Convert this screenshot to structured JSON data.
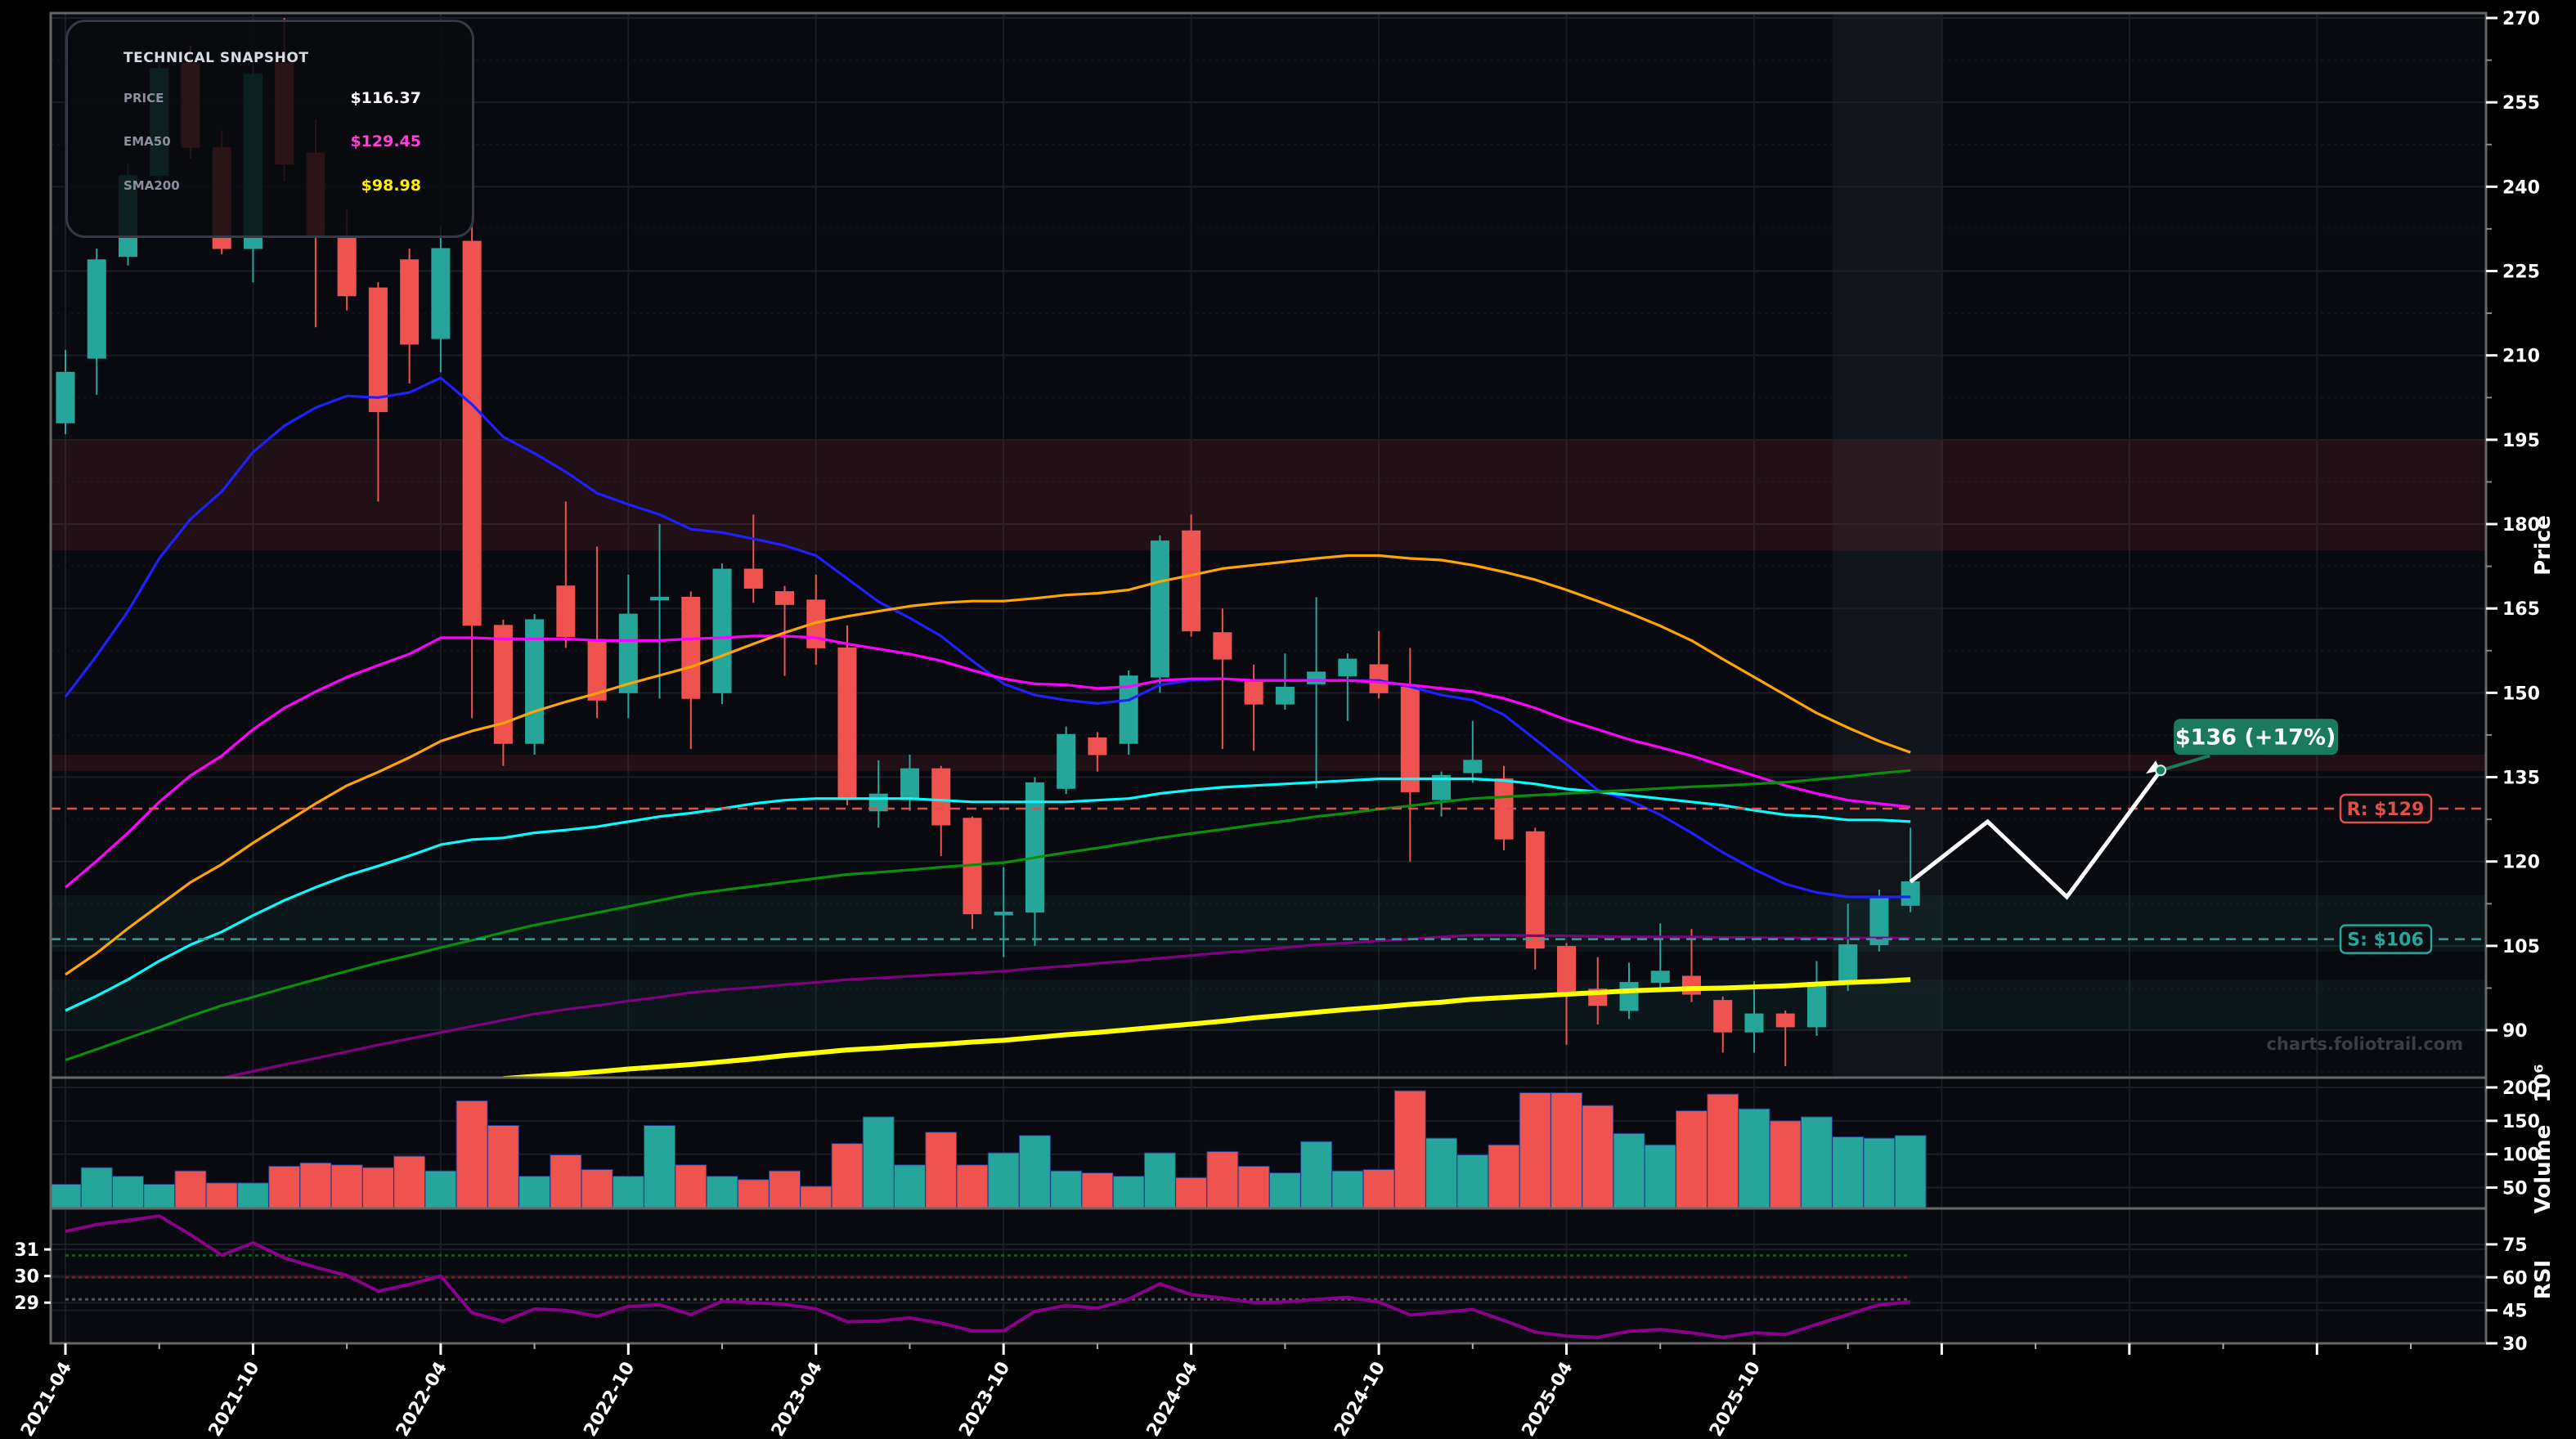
{
  "snapshot": {
    "title": "TECHNICAL SNAPSHOT",
    "rows": [
      {
        "label": "PRICE",
        "value": "$116.37",
        "color": "#ffffff"
      },
      {
        "label": "EMA50",
        "value": "$129.45",
        "color": "#ff40d8"
      },
      {
        "label": "SMA200",
        "value": "$98.98",
        "color": "#ffee00"
      }
    ]
  },
  "watermark": "charts.foliotrail.com",
  "chart_data": [
    {
      "type": "candlestick",
      "ylabel": "Price",
      "ylim": [
        81.6,
        270.9
      ],
      "yticks": [
        90,
        105,
        120,
        135,
        150,
        165,
        180,
        195,
        210,
        225,
        240,
        255,
        270
      ],
      "xlim": [
        "2021-03",
        "2027-09"
      ],
      "xticklabels": [
        "2021-04",
        "2021-10",
        "2022-04",
        "2022-10",
        "2023-04",
        "2023-10",
        "2024-04",
        "2024-10",
        "2025-04",
        "2025-10"
      ],
      "grid": true,
      "colors": {
        "up": "#26a69a",
        "down": "#ef5350"
      },
      "candles_columns": [
        "month",
        "open",
        "high",
        "low",
        "close"
      ],
      "candles": [
        [
          "2021-04",
          198,
          211,
          196,
          207
        ],
        [
          "2021-05",
          209.5,
          229,
          203,
          227
        ],
        [
          "2021-06",
          227.6,
          244,
          226,
          242
        ],
        [
          "2021-07",
          242,
          263,
          240,
          261
        ],
        [
          "2021-08",
          262,
          265,
          245,
          247
        ],
        [
          "2021-09",
          247,
          250,
          228,
          229
        ],
        [
          "2021-10",
          229,
          262,
          223,
          260
        ],
        [
          "2021-11",
          262,
          270,
          241,
          244
        ],
        [
          "2021-12",
          246,
          252,
          215,
          231
        ],
        [
          "2022-01",
          231,
          236,
          218,
          220.6
        ],
        [
          "2022-02",
          222,
          223,
          184,
          200
        ],
        [
          "2022-03",
          227,
          229,
          205,
          212
        ],
        [
          "2022-04",
          213,
          233,
          207,
          229
        ],
        [
          "2022-05",
          230.3,
          235,
          145.5,
          162
        ],
        [
          "2022-06",
          162,
          163,
          137,
          141
        ],
        [
          "2022-07",
          141,
          164,
          139,
          163
        ],
        [
          "2022-08",
          169,
          184,
          158,
          160
        ],
        [
          "2022-09",
          159.5,
          176,
          145.5,
          148.7
        ],
        [
          "2022-10",
          150,
          171,
          145.5,
          164
        ],
        [
          "2022-11",
          166.5,
          180,
          149,
          167
        ],
        [
          "2022-12",
          167,
          168,
          140,
          149
        ],
        [
          "2023-01",
          150,
          173,
          148,
          172
        ],
        [
          "2023-02",
          172,
          181.7,
          166,
          168.6
        ],
        [
          "2023-03",
          168,
          169,
          153,
          165.7
        ],
        [
          "2023-04",
          166.5,
          171,
          155,
          158
        ],
        [
          "2023-05",
          158,
          162,
          130,
          131
        ],
        [
          "2023-06",
          129,
          138,
          126,
          132
        ],
        [
          "2023-07",
          131,
          139,
          129,
          136.5
        ],
        [
          "2023-08",
          136.5,
          137,
          121,
          126.5
        ],
        [
          "2023-09",
          127.7,
          128,
          108,
          110.7
        ],
        [
          "2023-10",
          110.5,
          119,
          103,
          111
        ],
        [
          "2023-11",
          111,
          135,
          105,
          134
        ],
        [
          "2023-12",
          133,
          144,
          132,
          142.6
        ],
        [
          "2024-01",
          142,
          143,
          136,
          139
        ],
        [
          "2024-02",
          141,
          154,
          139,
          153
        ],
        [
          "2024-03",
          152.8,
          178,
          150,
          177
        ],
        [
          "2024-04",
          178.8,
          181.7,
          160,
          161
        ],
        [
          "2024-05",
          160.7,
          165,
          140,
          156
        ],
        [
          "2024-06",
          152,
          155,
          139.7,
          148
        ],
        [
          "2024-07",
          148,
          157,
          147,
          151
        ],
        [
          "2024-08",
          151.6,
          167,
          133,
          153.7
        ],
        [
          "2024-09",
          153,
          157,
          145,
          156
        ],
        [
          "2024-10",
          155,
          161,
          149,
          150
        ],
        [
          "2024-11",
          151,
          158,
          120,
          132.4
        ],
        [
          "2024-12",
          131,
          136,
          128,
          135.3
        ],
        [
          "2025-01",
          135.8,
          145,
          134,
          138
        ],
        [
          "2025-02",
          134.7,
          137,
          122,
          124
        ],
        [
          "2025-03",
          125.3,
          126,
          100.8,
          104.6
        ],
        [
          "2025-04",
          104.9,
          105.5,
          87.4,
          96.7
        ],
        [
          "2025-05",
          97.3,
          103,
          91,
          94.4
        ],
        [
          "2025-06",
          93.5,
          102,
          92,
          98.5
        ],
        [
          "2025-07",
          98.5,
          109,
          97,
          100.5
        ],
        [
          "2025-08",
          99.6,
          108,
          95,
          96.4
        ],
        [
          "2025-09",
          95.3,
          96,
          86,
          89.7
        ],
        [
          "2025-10",
          89.7,
          98.7,
          86,
          92.9
        ],
        [
          "2025-11",
          92.9,
          93.5,
          83.6,
          90.6
        ],
        [
          "2025-12",
          90.6,
          102.3,
          89,
          98.5
        ],
        [
          "2026-01",
          98.5,
          112.5,
          97,
          105.2
        ],
        [
          "2026-02",
          105.2,
          115,
          104,
          113.7
        ],
        [
          "2026-03",
          112.2,
          126,
          111,
          116.4
        ]
      ],
      "moving_averages": [
        {
          "color": "#2020ff",
          "values": [
            149.3,
            156.6,
            164.5,
            173.9,
            180.9,
            185.8,
            192.8,
            197.5,
            200.7,
            202.8,
            202.5,
            203.4,
            206.0,
            201.3,
            195.5,
            192.6,
            189.3,
            185.5,
            183.5,
            181.7,
            179.1,
            178.5,
            177.4,
            176.2,
            174.4,
            170.3,
            166.2,
            163.3,
            160.1,
            155.7,
            151.6,
            149.6,
            148.7,
            148.1,
            148.7,
            151.4,
            152.2,
            152.5,
            152.2,
            152.2,
            152.2,
            152.2,
            152.2,
            151.1,
            149.6,
            148.7,
            146.1,
            141.7,
            137.3,
            132.7,
            130.9,
            128.3,
            125.1,
            121.6,
            118.6,
            116.0,
            114.5,
            113.7,
            113.7,
            113.7
          ]
        },
        {
          "color": "#ff00ff",
          "values": [
            115.4,
            120.1,
            125.1,
            130.6,
            135.3,
            138.8,
            143.5,
            147.3,
            150.2,
            152.8,
            154.9,
            156.9,
            159.8,
            159.8,
            159.6,
            159.6,
            159.6,
            159.3,
            159.3,
            159.3,
            159.6,
            159.8,
            160.1,
            160.1,
            159.8,
            158.7,
            157.8,
            156.9,
            155.7,
            154.0,
            152.5,
            151.6,
            151.4,
            150.8,
            151.1,
            152.2,
            152.5,
            152.5,
            152.2,
            152.2,
            152.2,
            152.2,
            151.9,
            151.4,
            150.8,
            150.2,
            149.0,
            147.3,
            145.2,
            143.5,
            141.7,
            140.3,
            138.8,
            137.0,
            135.3,
            133.5,
            132.1,
            130.9,
            130.3,
            129.7
          ]
        },
        {
          "color": "#ffa500",
          "values": [
            99.9,
            103.7,
            108.1,
            112.2,
            116.3,
            119.5,
            123.3,
            126.8,
            130.3,
            133.5,
            135.9,
            138.5,
            141.4,
            143.2,
            144.6,
            146.7,
            148.4,
            149.9,
            151.6,
            153.1,
            154.6,
            156.6,
            158.7,
            160.7,
            162.5,
            163.6,
            164.5,
            165.4,
            166.0,
            166.3,
            166.3,
            166.8,
            167.4,
            167.7,
            168.3,
            169.8,
            170.9,
            172.1,
            172.7,
            173.3,
            173.9,
            174.4,
            174.4,
            173.9,
            173.6,
            172.7,
            171.5,
            170.1,
            168.3,
            166.3,
            164.2,
            161.9,
            159.3,
            156.0,
            152.8,
            149.6,
            146.4,
            143.8,
            141.4,
            139.4
          ]
        },
        {
          "color": "#00ffff",
          "values": [
            93.5,
            96.1,
            99.0,
            102.3,
            105.2,
            107.5,
            110.4,
            113.1,
            115.4,
            117.5,
            119.2,
            121.0,
            123.0,
            123.9,
            124.2,
            125.1,
            125.6,
            126.2,
            127.1,
            128.0,
            128.6,
            129.4,
            130.3,
            130.9,
            131.2,
            131.2,
            131.2,
            131.2,
            130.9,
            130.6,
            130.6,
            130.6,
            130.6,
            130.9,
            131.2,
            132.1,
            132.7,
            133.2,
            133.5,
            133.8,
            134.1,
            134.4,
            134.7,
            134.7,
            134.7,
            134.7,
            134.4,
            133.8,
            132.9,
            132.4,
            131.8,
            131.2,
            130.6,
            130.0,
            129.1,
            128.3,
            128.0,
            127.4,
            127.4,
            127.1
          ]
        },
        {
          "color": "#0a8f0a",
          "values": [
            84.7,
            86.6,
            88.6,
            90.5,
            92.5,
            94.4,
            95.9,
            97.5,
            99.0,
            100.5,
            102.0,
            103.3,
            104.7,
            106.0,
            107.4,
            108.7,
            109.8,
            110.9,
            112.0,
            113.1,
            114.2,
            114.9,
            115.6,
            116.3,
            117.0,
            117.7,
            118.1,
            118.5,
            119.0,
            119.4,
            119.8,
            120.7,
            121.6,
            122.4,
            123.3,
            124.2,
            125.0,
            125.7,
            126.5,
            127.2,
            128.0,
            128.6,
            129.3,
            129.9,
            130.6,
            131.2,
            131.5,
            131.8,
            132.1,
            132.4,
            132.7,
            133.0,
            133.3,
            133.5,
            133.8,
            134.1,
            134.6,
            135.1,
            135.7,
            136.2
          ]
        },
        {
          "color": "#800080",
          "values": [
            null,
            null,
            null,
            null,
            null,
            81.5,
            82.7,
            83.9,
            85.0,
            86.2,
            87.4,
            88.5,
            89.6,
            90.7,
            91.8,
            92.9,
            93.7,
            94.4,
            95.2,
            95.9,
            96.7,
            97.2,
            97.6,
            98.1,
            98.5,
            99.0,
            99.3,
            99.6,
            99.9,
            100.2,
            100.5,
            101.0,
            101.4,
            101.9,
            102.3,
            102.8,
            103.3,
            103.8,
            104.2,
            104.7,
            105.2,
            105.5,
            105.9,
            106.2,
            106.6,
            106.9,
            106.9,
            106.8,
            106.8,
            106.7,
            106.6,
            106.6,
            106.6,
            106.5,
            106.5,
            106.4,
            106.4,
            106.4,
            106.4,
            106.4
          ]
        },
        {
          "color": "#ffff00",
          "values": [
            null,
            null,
            null,
            null,
            null,
            null,
            null,
            null,
            null,
            null,
            null,
            null,
            null,
            null,
            81.4,
            81.8,
            82.2,
            82.6,
            83.1,
            83.5,
            83.9,
            84.4,
            84.9,
            85.5,
            86.0,
            86.5,
            86.8,
            87.2,
            87.5,
            87.9,
            88.2,
            88.7,
            89.2,
            89.6,
            90.1,
            90.6,
            91.1,
            91.6,
            92.2,
            92.7,
            93.2,
            93.7,
            94.1,
            94.6,
            95.0,
            95.5,
            95.8,
            96.1,
            96.4,
            96.7,
            97.0,
            97.2,
            97.4,
            97.5,
            97.7,
            97.9,
            98.2,
            98.5,
            98.7,
            99.0
          ]
        }
      ],
      "zones": [
        {
          "from": 175.3,
          "to": 194.9,
          "color": "#ef5350"
        },
        {
          "from": 136.1,
          "to": 139.0,
          "color": "#ef5350"
        },
        {
          "from": 104.0,
          "to": 114.0,
          "color": "#26a69a"
        },
        {
          "from": 90.0,
          "to": 99.0,
          "color": "#26a69a"
        }
      ],
      "levels": [
        {
          "label": "R: $129",
          "value": 129.4,
          "color": "#e0504a"
        },
        {
          "label": "S: $106",
          "value": 106.2,
          "color": "#26a69a"
        }
      ],
      "projection": {
        "points": [
          [
            "2026-03",
            116.4
          ],
          [
            "2026-05-15",
            127.1
          ],
          [
            "2026-08",
            113.7
          ],
          [
            "2026-11",
            136.2
          ]
        ],
        "label": "$136 (+17%)",
        "label_color": "#1a7a5e"
      },
      "highlight_from": "2026-01"
    },
    {
      "type": "bar",
      "ylabel": "Volume",
      "offset_label": "10⁶",
      "ylim": [
        18.8,
        215
      ],
      "yticks": [
        50,
        100,
        150,
        200
      ],
      "values": [
        55,
        80,
        67,
        55,
        75,
        57,
        57,
        82,
        87,
        84,
        80,
        97,
        75,
        180,
        143,
        67,
        99,
        77,
        67,
        143,
        84,
        67,
        62,
        75,
        52,
        116,
        156,
        84,
        133,
        84,
        102,
        128,
        75,
        72,
        67,
        102,
        65,
        104,
        82,
        72,
        119,
        75,
        77,
        195,
        124,
        99,
        114,
        192,
        192,
        173,
        131,
        114,
        165,
        190,
        168,
        150,
        156,
        126,
        124,
        128
      ]
    },
    {
      "type": "line",
      "ylabel": "RSI",
      "ylim": [
        30,
        91.3
      ],
      "yticks": [
        30,
        45,
        60,
        75
      ],
      "left_yticks": [
        {
          "label": "29",
          "at": 48.5
        },
        {
          "label": "30",
          "at": 60.6
        },
        {
          "label": "31",
          "at": 72.7
        }
      ],
      "reference_lines": [
        {
          "value": 70,
          "color": "#0f5a1a"
        },
        {
          "value": 60,
          "color": "#7a1a1a"
        },
        {
          "value": 50,
          "color": "#555555"
        }
      ],
      "color": "#8b008b",
      "values": [
        80.9,
        84.0,
        85.9,
        87.9,
        79.4,
        70.1,
        75.7,
        68.9,
        64.6,
        60.9,
        53.7,
        56.8,
        60.6,
        43.9,
        40.0,
        45.6,
        45.0,
        42.3,
        46.8,
        47.5,
        43.1,
        49.1,
        48.5,
        47.8,
        45.7,
        39.8,
        40.1,
        41.6,
        39.2,
        35.7,
        35.7,
        44.5,
        47.2,
        46.0,
        50.1,
        57.1,
        52.2,
        50.6,
        48.5,
        48.8,
        50.0,
        50.9,
        48.8,
        42.9,
        44.1,
        45.4,
        40.4,
        35.1,
        33.3,
        32.7,
        35.5,
        36.3,
        34.8,
        32.7,
        34.8,
        34.0,
        38.6,
        43.1,
        47.6,
        48.8
      ]
    }
  ]
}
